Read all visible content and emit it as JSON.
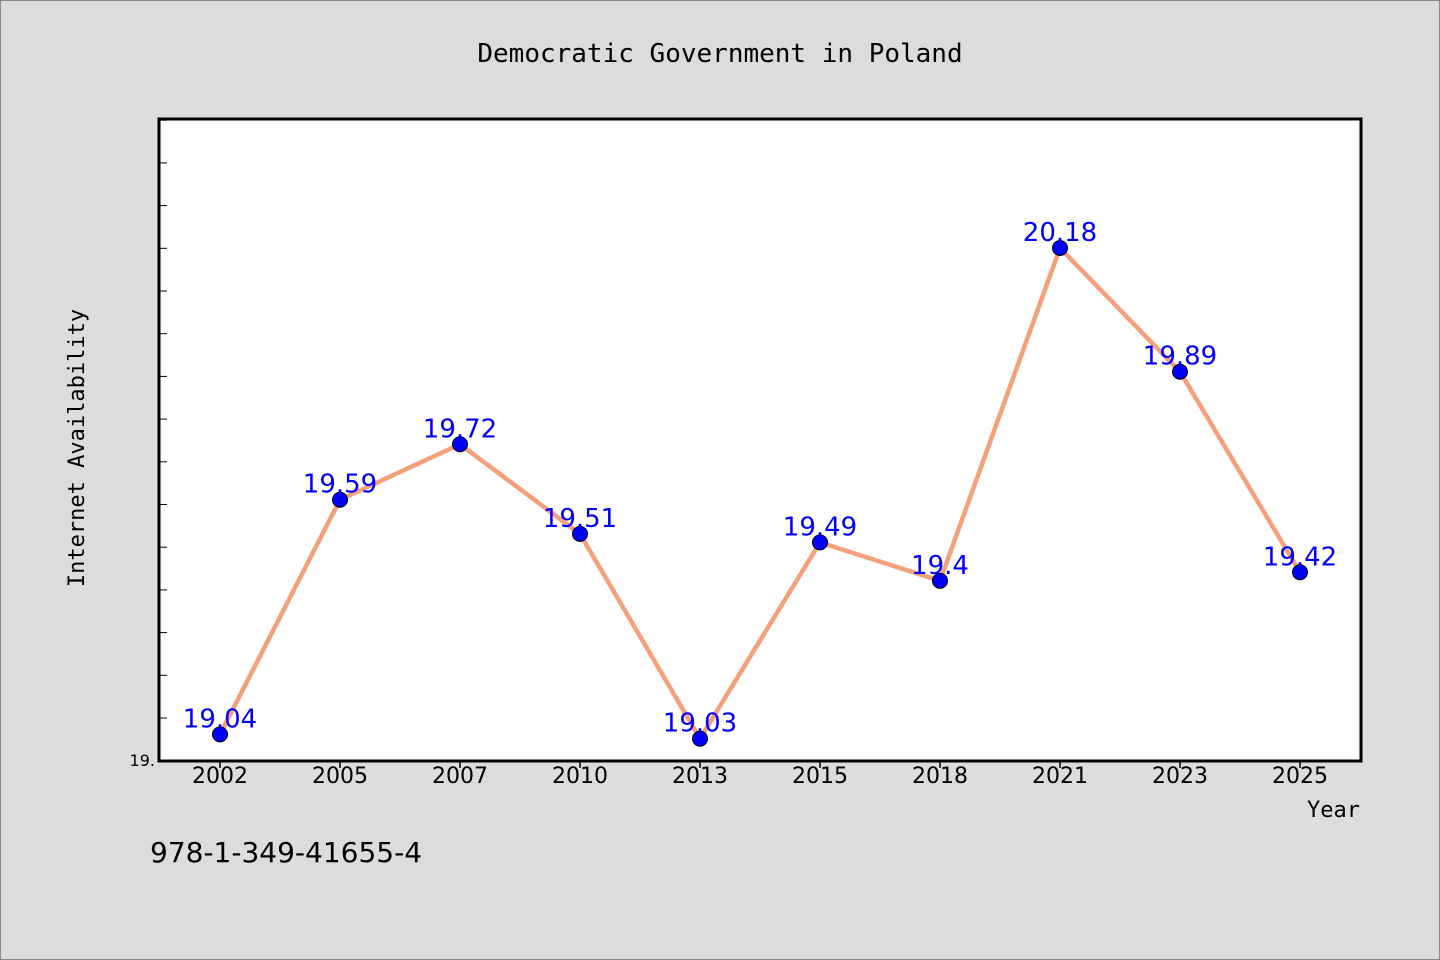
{
  "chart_data": {
    "type": "line",
    "title": "Democratic Government in Poland",
    "xlabel": "Year",
    "ylabel": "Internet Availability",
    "categories": [
      "2002",
      "2005",
      "2007",
      "2010",
      "2013",
      "2015",
      "2018",
      "2021",
      "2023",
      "2025"
    ],
    "series": [
      {
        "values": [
          19.04,
          19.59,
          19.72,
          19.51,
          19.03,
          19.49,
          19.4,
          20.18,
          19.89,
          19.42
        ],
        "labels": [
          "19.04",
          "19.59",
          "19.72",
          "19.51",
          "19.03",
          "19.49",
          "19.4",
          "20.18",
          "19.89",
          "19.42"
        ]
      }
    ],
    "ylim": [
      18.98,
      20.48
    ],
    "y_tick_label": "19.",
    "grid": false,
    "colors": {
      "line": "#f4a07c",
      "marker": "#0000ff",
      "data_label": "#0000ff",
      "plot_background": "#ffffff",
      "figure_background": "#dcdcdc"
    }
  },
  "annotation": "978-1-349-41655-4"
}
